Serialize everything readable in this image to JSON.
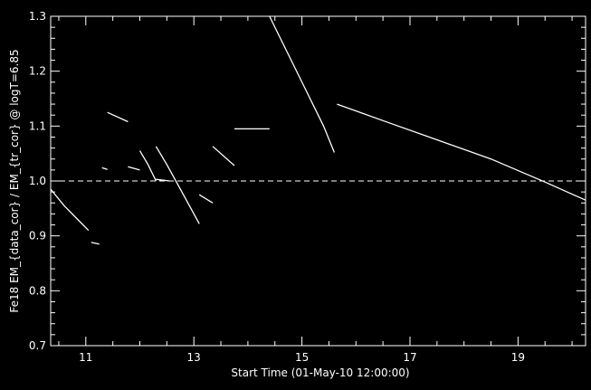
{
  "chart_data": {
    "type": "line",
    "title": "",
    "xlabel": "Start Time (01-May-10 12:00:00)",
    "ylabel": "Fe18 EM_{data_cor} / EM_{tr_cor} @ logT=6.85",
    "xlim": [
      10.35,
      20.25
    ],
    "ylim": [
      0.7,
      1.3
    ],
    "x_ticks": [
      11,
      13,
      15,
      17,
      19
    ],
    "x_tick_labels": [
      "11",
      "13",
      "15",
      "17",
      "19"
    ],
    "y_ticks": [
      0.7,
      0.8,
      0.9,
      1.0,
      1.1,
      1.2,
      1.3
    ],
    "y_tick_labels": [
      "0.7",
      "0.8",
      "0.9",
      "1.0",
      "1.1",
      "1.2",
      "1.3"
    ],
    "reference_line": {
      "y": 1.0,
      "style": "dashed"
    },
    "grid": false,
    "series": [
      {
        "x": [
          10.35,
          10.6,
          10.85,
          11.05
        ],
        "y": [
          0.985,
          0.955,
          0.93,
          0.91
        ]
      },
      {
        "x": [
          11.1,
          11.25
        ],
        "y": [
          0.888,
          0.885
        ]
      },
      {
        "x": [
          11.3,
          11.4
        ],
        "y": [
          1.024,
          1.021
        ]
      },
      {
        "x": [
          11.4,
          11.78
        ],
        "y": [
          1.125,
          1.108
        ]
      },
      {
        "x": [
          11.78,
          12.0
        ],
        "y": [
          1.026,
          1.02
        ]
      },
      {
        "x": [
          12.0,
          12.15,
          12.3
        ],
        "y": [
          1.055,
          1.03,
          1.0
        ]
      },
      {
        "x": [
          12.3,
          12.55
        ],
        "y": [
          1.003,
          1.0
        ]
      },
      {
        "x": [
          12.3,
          12.5,
          12.75,
          13.1
        ],
        "y": [
          1.063,
          1.03,
          0.985,
          0.922
        ]
      },
      {
        "x": [
          13.1,
          13.35
        ],
        "y": [
          0.975,
          0.96
        ]
      },
      {
        "x": [
          13.35,
          13.75
        ],
        "y": [
          1.063,
          1.028
        ]
      },
      {
        "x": [
          13.75,
          14.4
        ],
        "y": [
          1.095,
          1.095
        ]
      },
      {
        "x": [
          14.4,
          14.8,
          15.1,
          15.4,
          15.6
        ],
        "y": [
          1.3,
          1.22,
          1.16,
          1.1,
          1.052
        ]
      },
      {
        "x": [
          15.65,
          16.5,
          17.5,
          18.5,
          19.5,
          20.25
        ],
        "y": [
          1.14,
          1.11,
          1.075,
          1.04,
          0.998,
          0.965
        ]
      }
    ]
  }
}
